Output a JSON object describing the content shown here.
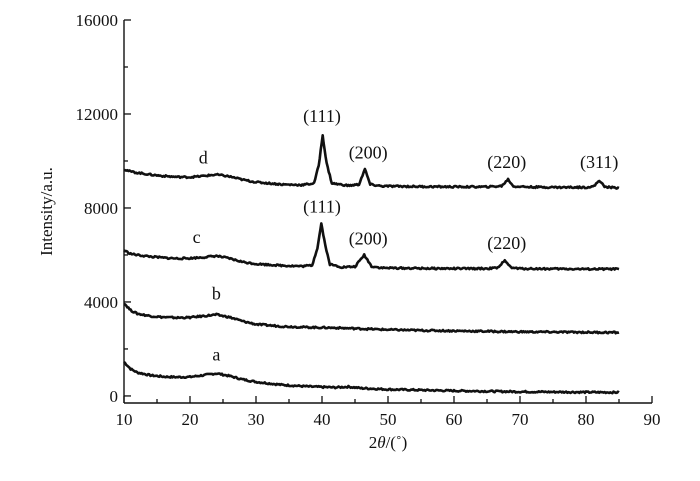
{
  "chart_data": {
    "type": "line",
    "xlabel_parts": {
      "prefix": "2",
      "symbol": "θ",
      "unit": "/(˚)"
    },
    "ylabel": "Intensity/a.u.",
    "xlim": [
      10,
      90
    ],
    "ylim": [
      -300,
      16000
    ],
    "x_ticks": [
      10,
      20,
      30,
      40,
      50,
      60,
      70,
      80,
      90
    ],
    "y_ticks": [
      0,
      4000,
      8000,
      12000,
      16000
    ],
    "grid": false,
    "series": [
      {
        "name": "a",
        "points": [
          [
            10,
            1450
          ],
          [
            11,
            1150
          ],
          [
            12,
            1000
          ],
          [
            14,
            880
          ],
          [
            16,
            820
          ],
          [
            18,
            800
          ],
          [
            20,
            810
          ],
          [
            22,
            880
          ],
          [
            24,
            960
          ],
          [
            26,
            850
          ],
          [
            28,
            700
          ],
          [
            30,
            600
          ],
          [
            34,
            470
          ],
          [
            38,
            400
          ],
          [
            42,
            360
          ],
          [
            44,
            390
          ],
          [
            46,
            330
          ],
          [
            50,
            280
          ],
          [
            55,
            250
          ],
          [
            60,
            220
          ],
          [
            65,
            200
          ],
          [
            70,
            180
          ],
          [
            75,
            170
          ],
          [
            80,
            160
          ],
          [
            85,
            150
          ]
        ]
      },
      {
        "name": "b",
        "points": [
          [
            10,
            3950
          ],
          [
            11,
            3650
          ],
          [
            12,
            3500
          ],
          [
            14,
            3400
          ],
          [
            16,
            3350
          ],
          [
            18,
            3330
          ],
          [
            20,
            3340
          ],
          [
            22,
            3400
          ],
          [
            24,
            3460
          ],
          [
            26,
            3350
          ],
          [
            28,
            3180
          ],
          [
            30,
            3050
          ],
          [
            34,
            2960
          ],
          [
            38,
            2920
          ],
          [
            42,
            2900
          ],
          [
            46,
            2860
          ],
          [
            50,
            2820
          ],
          [
            55,
            2790
          ],
          [
            60,
            2770
          ],
          [
            65,
            2750
          ],
          [
            70,
            2730
          ],
          [
            75,
            2720
          ],
          [
            80,
            2710
          ],
          [
            85,
            2700
          ]
        ]
      },
      {
        "name": "c",
        "points": [
          [
            10,
            6200
          ],
          [
            11,
            6050
          ],
          [
            12,
            6000
          ],
          [
            14,
            5930
          ],
          [
            16,
            5880
          ],
          [
            18,
            5850
          ],
          [
            20,
            5860
          ],
          [
            22,
            5900
          ],
          [
            24,
            5960
          ],
          [
            26,
            5850
          ],
          [
            28,
            5700
          ],
          [
            30,
            5620
          ],
          [
            34,
            5550
          ],
          [
            37,
            5520
          ],
          [
            38.5,
            5560
          ],
          [
            39.3,
            6300
          ],
          [
            39.9,
            7350
          ],
          [
            40.5,
            6400
          ],
          [
            41.2,
            5600
          ],
          [
            43,
            5480
          ],
          [
            45,
            5500
          ],
          [
            46.4,
            6000
          ],
          [
            47.5,
            5520
          ],
          [
            49,
            5450
          ],
          [
            55,
            5430
          ],
          [
            60,
            5420
          ],
          [
            65,
            5420
          ],
          [
            66.8,
            5460
          ],
          [
            67.7,
            5800
          ],
          [
            68.6,
            5460
          ],
          [
            70,
            5420
          ],
          [
            75,
            5410
          ],
          [
            80,
            5400
          ],
          [
            85,
            5400
          ]
        ]
      },
      {
        "name": "d",
        "points": [
          [
            10,
            9650
          ],
          [
            11,
            9550
          ],
          [
            12,
            9500
          ],
          [
            14,
            9420
          ],
          [
            16,
            9360
          ],
          [
            18,
            9320
          ],
          [
            20,
            9310
          ],
          [
            22,
            9360
          ],
          [
            24,
            9420
          ],
          [
            26,
            9340
          ],
          [
            28,
            9200
          ],
          [
            30,
            9100
          ],
          [
            34,
            9000
          ],
          [
            37,
            8980
          ],
          [
            38.8,
            9050
          ],
          [
            39.5,
            9800
          ],
          [
            40.1,
            11100
          ],
          [
            40.7,
            9900
          ],
          [
            41.5,
            9050
          ],
          [
            44,
            8950
          ],
          [
            45.6,
            9000
          ],
          [
            46.5,
            9650
          ],
          [
            47.3,
            9000
          ],
          [
            49,
            8930
          ],
          [
            55,
            8910
          ],
          [
            60,
            8900
          ],
          [
            65,
            8900
          ],
          [
            67.2,
            8930
          ],
          [
            68.2,
            9220
          ],
          [
            69,
            8920
          ],
          [
            72,
            8890
          ],
          [
            76,
            8880
          ],
          [
            80,
            8880
          ],
          [
            81.2,
            8920
          ],
          [
            82,
            9180
          ],
          [
            82.8,
            8900
          ],
          [
            85,
            8850
          ]
        ]
      }
    ],
    "annotations": [
      {
        "id": "a",
        "text": "a",
        "x": 24,
        "y": 1500
      },
      {
        "id": "b",
        "text": "b",
        "x": 24,
        "y": 4100
      },
      {
        "id": "c",
        "text": "c",
        "x": 21,
        "y": 6500
      },
      {
        "id": "d",
        "text": "d",
        "x": 22,
        "y": 9900
      },
      {
        "id": "c-111",
        "text": "(111)",
        "x": 40,
        "y": 7800
      },
      {
        "id": "c-200",
        "text": "(200)",
        "x": 47,
        "y": 6450
      },
      {
        "id": "c-220",
        "text": "(220)",
        "x": 68,
        "y": 6250
      },
      {
        "id": "d-111",
        "text": "(111)",
        "x": 40,
        "y": 11650
      },
      {
        "id": "d-200",
        "text": "(200)",
        "x": 47,
        "y": 10100
      },
      {
        "id": "d-220",
        "text": "(220)",
        "x": 68,
        "y": 9700
      },
      {
        "id": "d-311",
        "text": "(311)",
        "x": 82,
        "y": 9700
      }
    ]
  }
}
